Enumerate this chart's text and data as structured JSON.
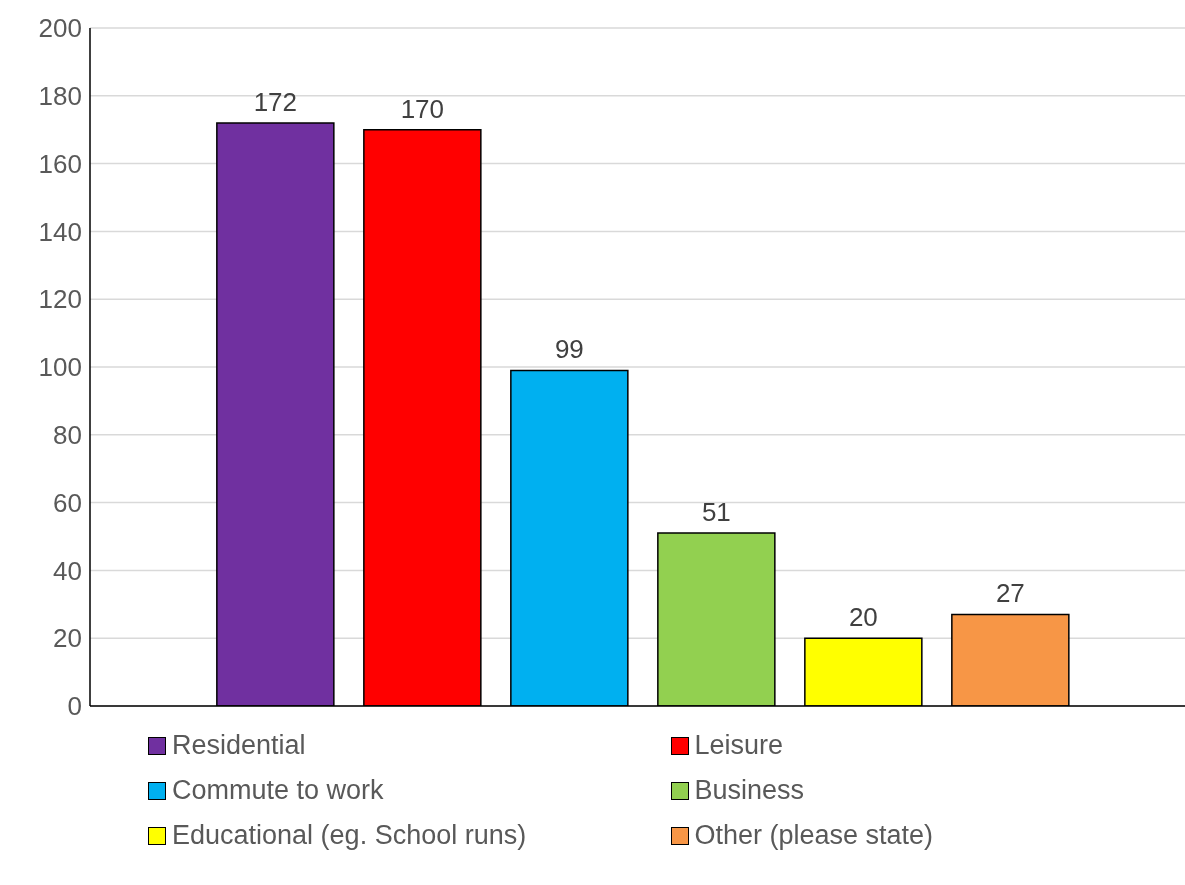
{
  "chart_data": {
    "type": "bar",
    "categories": [
      null
    ],
    "series": [
      {
        "name": "Residential",
        "color": "#7030a0",
        "values": [
          172
        ]
      },
      {
        "name": "Leisure",
        "color": "#ff0000",
        "values": [
          170
        ]
      },
      {
        "name": "Commute to work",
        "color": "#00b0f0",
        "values": [
          99
        ]
      },
      {
        "name": "Business",
        "color": "#92d050",
        "values": [
          51
        ]
      },
      {
        "name": "Educational (eg. School runs)",
        "color": "#ffff00",
        "values": [
          20
        ]
      },
      {
        "name": "Other (please state)",
        "color": "#f79646",
        "values": [
          27
        ]
      }
    ],
    "ylim": [
      0,
      200
    ],
    "yticks": [
      0,
      20,
      40,
      60,
      80,
      100,
      120,
      140,
      160,
      180,
      200
    ],
    "grid": "y",
    "legend": "bottom",
    "data_labels": true
  }
}
